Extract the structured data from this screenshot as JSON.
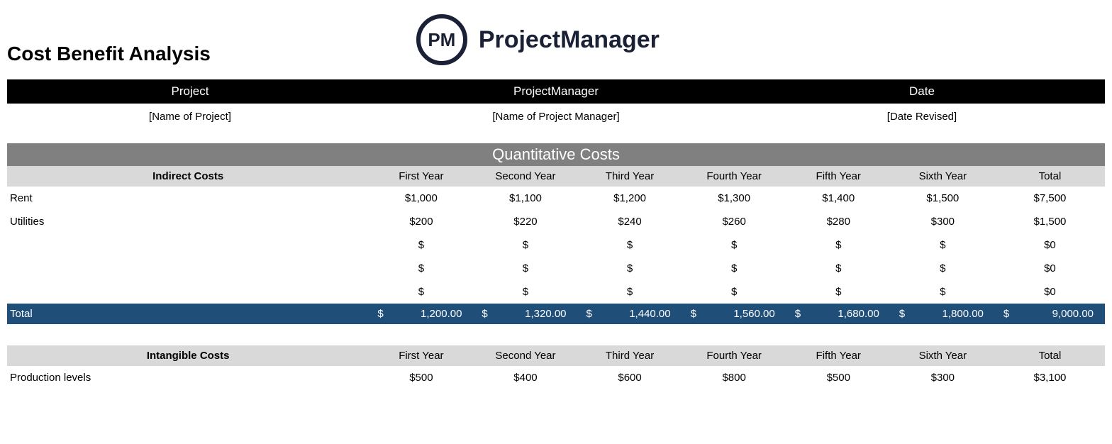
{
  "colors": {
    "black": "#000000",
    "white": "#ffffff",
    "section_gray": "#808080",
    "header_gray": "#d9d9d9",
    "total_navy": "#1f4e79",
    "logo_dark": "#1a2036"
  },
  "logo": {
    "initials": "PM",
    "brand": "ProjectManager"
  },
  "title": "Cost Benefit Analysis",
  "info": {
    "headers": {
      "project": "Project",
      "manager": "ProjectManager",
      "date": "Date"
    },
    "values": {
      "project": "[Name of Project]",
      "manager": "[Name of Project Manager]",
      "date": "[Date Revised]"
    }
  },
  "section_title": "Quantitative Costs",
  "year_headers": [
    "First Year",
    "Second Year",
    "Third Year",
    "Fourth Year",
    "Fifth Year",
    "Sixth Year",
    "Total"
  ],
  "indirect": {
    "label": "Indirect Costs",
    "rows": [
      {
        "label": "Rent",
        "y": [
          "$1,000",
          "$1,100",
          "$1,200",
          "$1,300",
          "$1,400",
          "$1,500",
          "$7,500"
        ]
      },
      {
        "label": "Utilities",
        "y": [
          "$200",
          "$220",
          "$240",
          "$260",
          "$280",
          "$300",
          "$1,500"
        ]
      },
      {
        "label": "",
        "y": [
          "$",
          "$",
          "$",
          "$",
          "$",
          "$",
          "$0"
        ]
      },
      {
        "label": "",
        "y": [
          "$",
          "$",
          "$",
          "$",
          "$",
          "$",
          "$0"
        ]
      },
      {
        "label": "",
        "y": [
          "$",
          "$",
          "$",
          "$",
          "$",
          "$",
          "$0"
        ]
      }
    ],
    "total": {
      "label": "Total",
      "y": [
        "1,200.00",
        "1,320.00",
        "1,440.00",
        "1,560.00",
        "1,680.00",
        "1,800.00",
        "9,000.00"
      ]
    }
  },
  "intangible": {
    "label": "Intangible Costs",
    "rows": [
      {
        "label": "Production levels",
        "y": [
          "$500",
          "$400",
          "$600",
          "$800",
          "$500",
          "$300",
          "$3,100"
        ]
      }
    ]
  },
  "currency_symbol": "$"
}
